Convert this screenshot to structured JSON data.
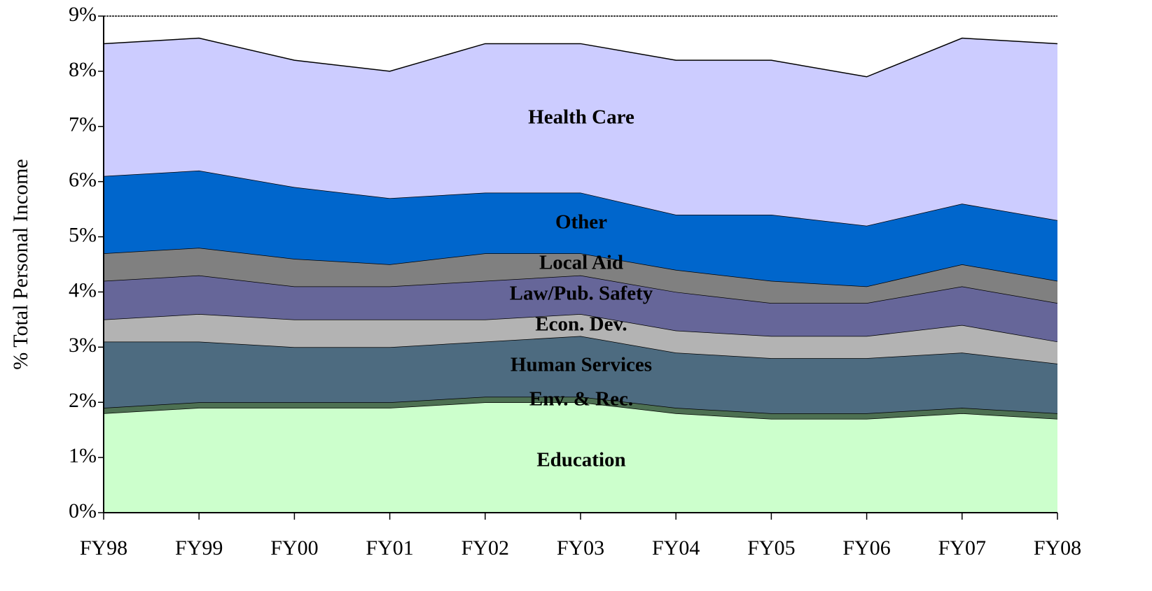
{
  "chart_data": {
    "type": "stacked_area",
    "y_label": "% Total Personal Income",
    "categories": [
      "FY98",
      "FY99",
      "FY00",
      "FY01",
      "FY02",
      "FY03",
      "FY04",
      "FY05",
      "FY06",
      "FY07",
      "FY08"
    ],
    "series": [
      {
        "name": "Education",
        "color": "#ccffcc",
        "values": [
          1.8,
          1.9,
          1.9,
          1.9,
          2.0,
          2.0,
          1.8,
          1.7,
          1.7,
          1.8,
          1.7
        ]
      },
      {
        "name": "Env. & Rec.",
        "color": "#4d7052",
        "values": [
          0.1,
          0.1,
          0.1,
          0.1,
          0.1,
          0.1,
          0.1,
          0.1,
          0.1,
          0.1,
          0.1
        ]
      },
      {
        "name": "Human Services",
        "color": "#4d6b80",
        "values": [
          1.2,
          1.1,
          1.0,
          1.0,
          1.0,
          1.1,
          1.0,
          1.0,
          1.0,
          1.0,
          0.9
        ]
      },
      {
        "name": "Econ. Dev.",
        "color": "#b3b3b3",
        "values": [
          0.4,
          0.5,
          0.5,
          0.5,
          0.4,
          0.4,
          0.4,
          0.4,
          0.4,
          0.5,
          0.4
        ]
      },
      {
        "name": "Law/Pub. Safety",
        "color": "#666699",
        "values": [
          0.7,
          0.7,
          0.6,
          0.6,
          0.7,
          0.7,
          0.7,
          0.6,
          0.6,
          0.7,
          0.7
        ]
      },
      {
        "name": "Local Aid",
        "color": "#808080",
        "values": [
          0.5,
          0.5,
          0.5,
          0.4,
          0.5,
          0.4,
          0.4,
          0.4,
          0.3,
          0.4,
          0.4
        ]
      },
      {
        "name": "Other",
        "color": "#0066cc",
        "values": [
          1.4,
          1.4,
          1.3,
          1.2,
          1.1,
          1.1,
          1.0,
          1.2,
          1.1,
          1.1,
          1.1
        ]
      },
      {
        "name": "Health Care",
        "color": "#ccccff",
        "values": [
          2.4,
          2.4,
          2.3,
          2.3,
          2.7,
          2.7,
          2.8,
          2.8,
          2.7,
          3.0,
          3.2
        ]
      }
    ],
    "ylim": [
      0,
      9
    ],
    "yticks": [
      {
        "value": 0,
        "label": "0%"
      },
      {
        "value": 1,
        "label": "1%"
      },
      {
        "value": 2,
        "label": "2%"
      },
      {
        "value": 3,
        "label": "3%"
      },
      {
        "value": 4,
        "label": "4%"
      },
      {
        "value": 5,
        "label": "5%"
      },
      {
        "value": 6,
        "label": "6%"
      },
      {
        "value": 7,
        "label": "7%"
      },
      {
        "value": 8,
        "label": "8%"
      },
      {
        "value": 9,
        "label": "9%"
      }
    ]
  }
}
